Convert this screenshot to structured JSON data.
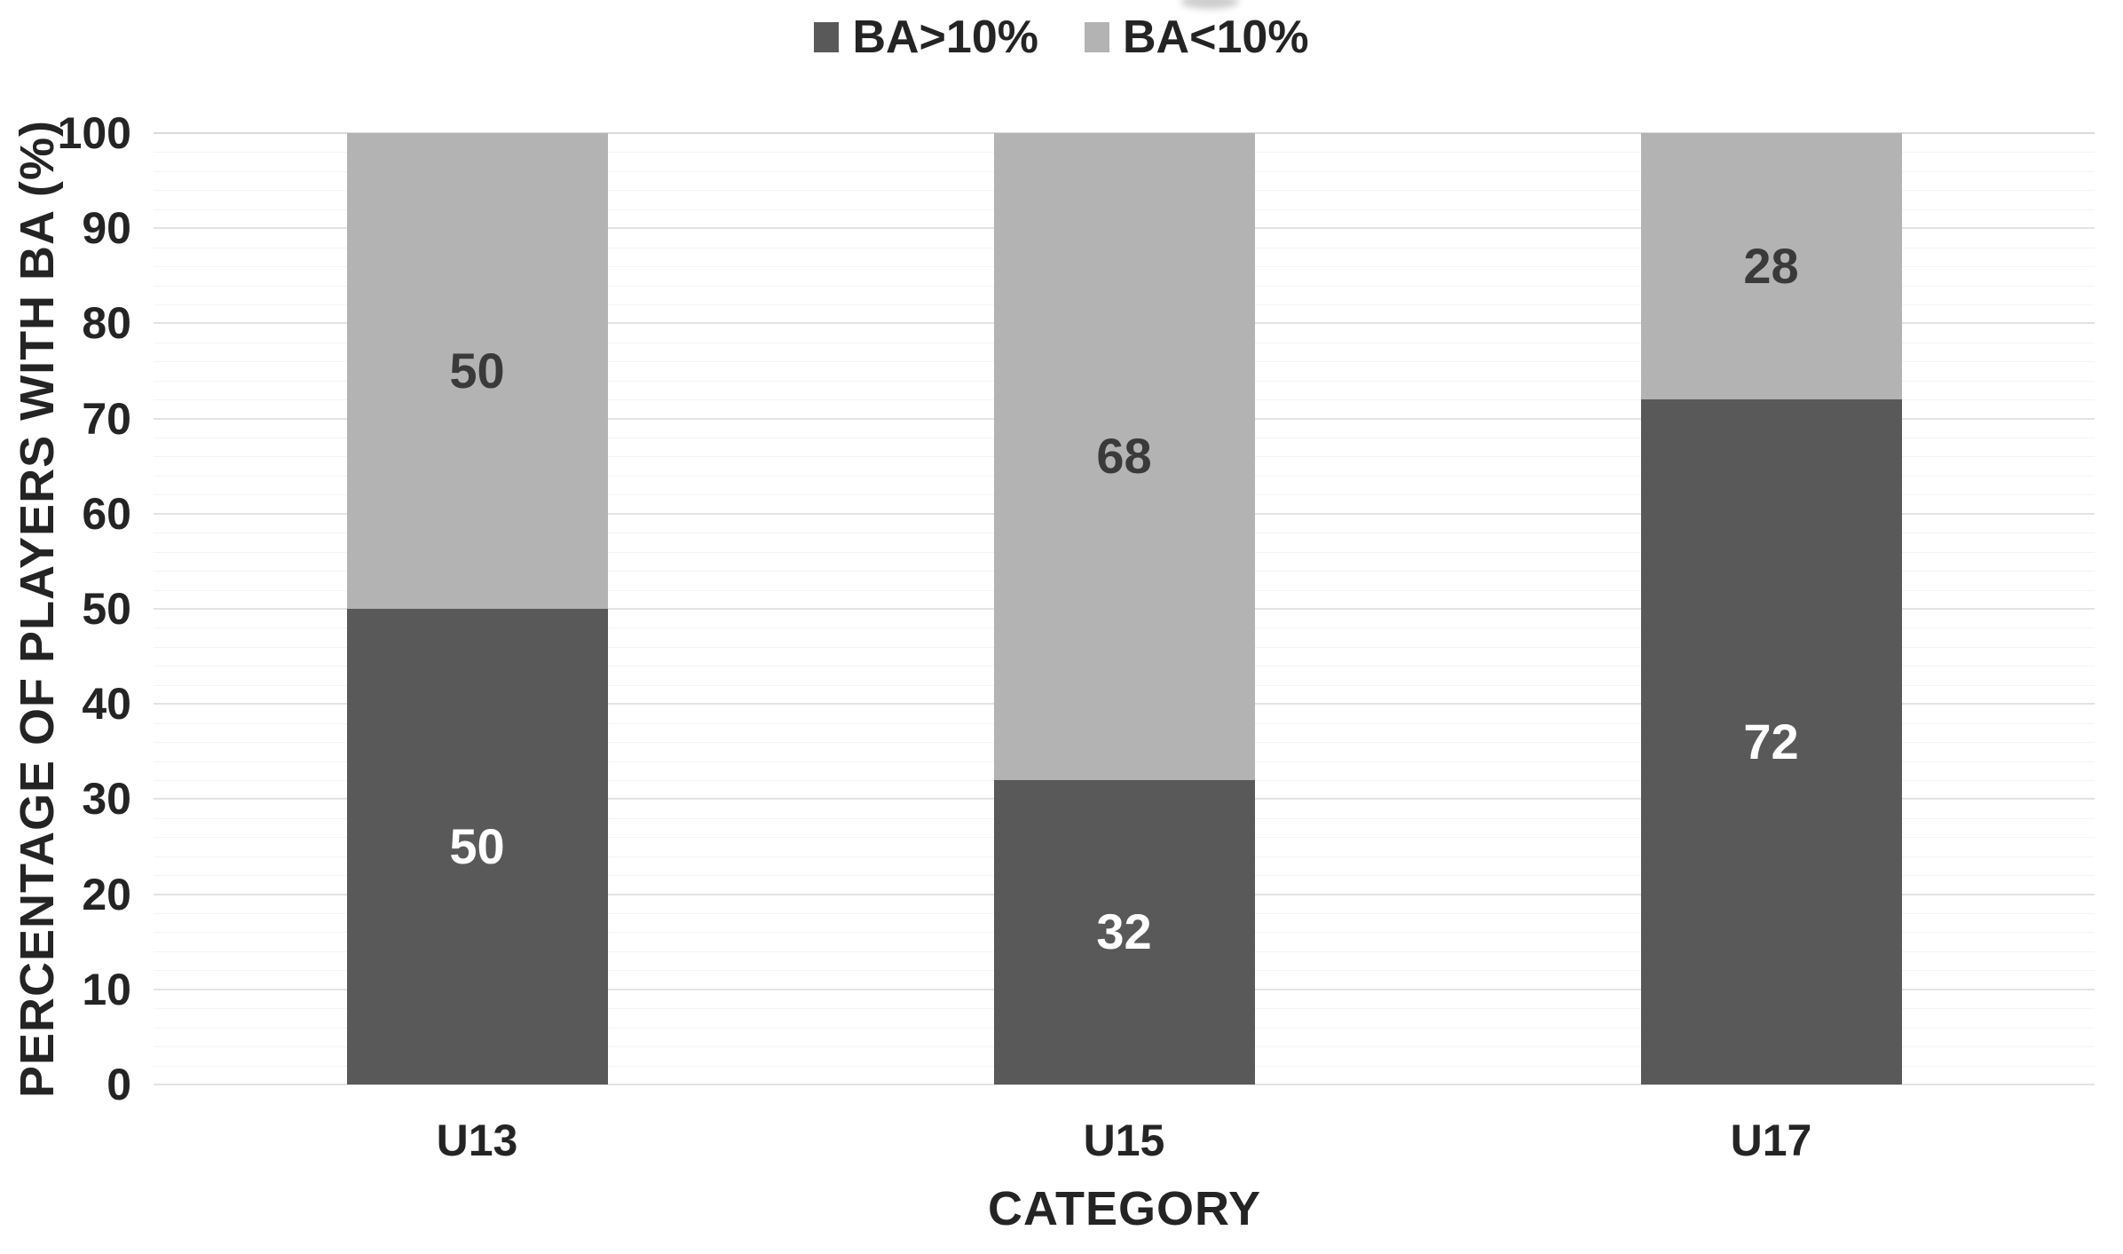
{
  "chart_data": {
    "type": "bar",
    "stacked": true,
    "categories": [
      "U13",
      "U15",
      "U17"
    ],
    "series": [
      {
        "name": "BA>10%",
        "color": "#595959",
        "label_color": "#ffffff",
        "values": [
          50,
          32,
          72
        ]
      },
      {
        "name": "BA<10%",
        "color": "#b3b3b3",
        "label_color": "#3a3a3a",
        "values": [
          50,
          68,
          28
        ]
      }
    ],
    "title": "",
    "xlabel": "CATEGORY",
    "ylabel": "PERCENTAGE OF PLAYERS WITH BA (%)",
    "ylim": [
      0,
      100
    ],
    "ytick_labels": [
      "0",
      "10",
      "20",
      "30",
      "40",
      "50",
      "60",
      "70",
      "80",
      "90",
      "100"
    ],
    "yminor_step": 2,
    "grid": "horizontal major + faint minor",
    "legend_position": "top-center",
    "bar_label_placement": "center"
  },
  "colors": {
    "dark_series": "#595959",
    "light_series": "#b3b3b3",
    "axis_text": "#242424",
    "major_grid": "#e3e3e3",
    "minor_grid": "#f4f4f4",
    "background": "#ffffff"
  }
}
